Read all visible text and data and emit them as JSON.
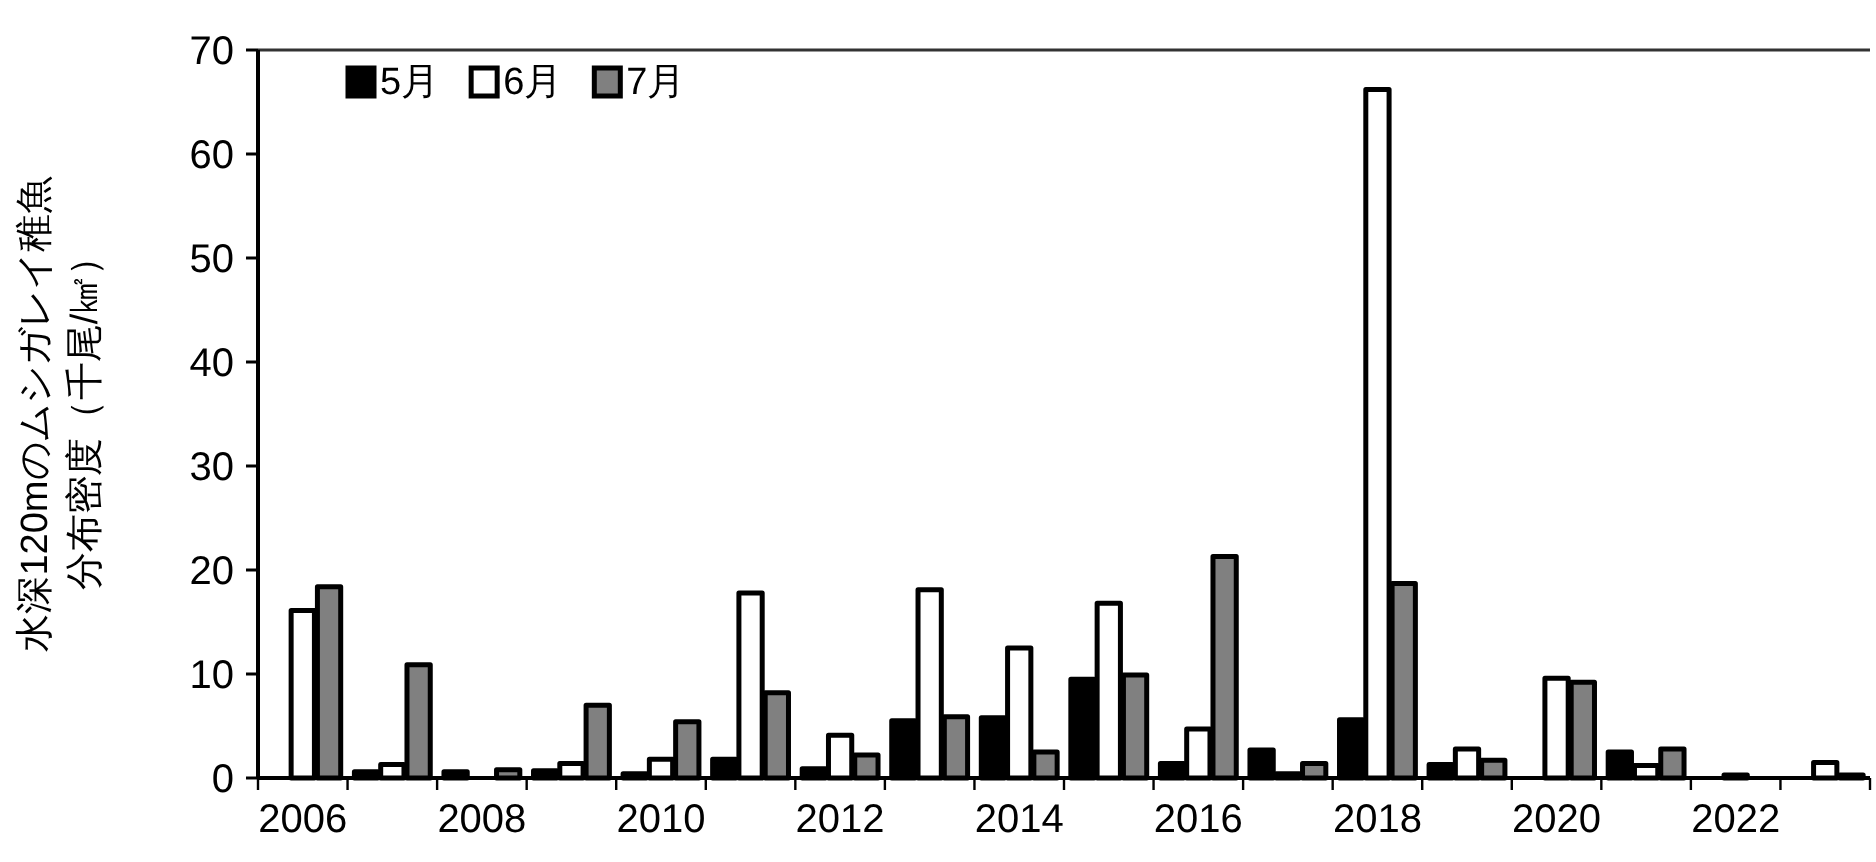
{
  "chart_data": {
    "type": "bar",
    "ylabel": [
      "水深120mのムシガレイ稚魚",
      "分布密度（千尾/㎢）"
    ],
    "categories": [
      "2006",
      null,
      "2008",
      null,
      "2010",
      null,
      "2012",
      null,
      "2014",
      null,
      "2016",
      null,
      "2018",
      null,
      "2020",
      null,
      "2022",
      null
    ],
    "series": [
      {
        "name": "5月",
        "color": "#000000",
        "values": [
          null,
          0.6,
          0.6,
          0.7,
          0.4,
          1.8,
          0.9,
          5.5,
          5.8,
          9.5,
          1.4,
          2.7,
          5.6,
          1.3,
          null,
          2.5,
          null,
          null
        ]
      },
      {
        "name": "6月",
        "color": "#ffffff",
        "values": [
          16.1,
          1.3,
          null,
          1.4,
          1.8,
          17.8,
          4.1,
          18.1,
          12.5,
          16.8,
          4.7,
          0.4,
          66.2,
          2.8,
          9.6,
          1.2,
          0.3,
          1.5
        ]
      },
      {
        "name": "7月",
        "color": "#808080",
        "values": [
          18.4,
          10.9,
          0.8,
          7.0,
          5.4,
          8.2,
          2.2,
          5.9,
          2.5,
          9.9,
          21.3,
          1.4,
          18.7,
          1.7,
          9.2,
          2.8,
          null,
          0.3
        ]
      }
    ],
    "ylim": [
      0,
      70
    ],
    "yticks": [
      0,
      10,
      20,
      30,
      40,
      50,
      60,
      70
    ],
    "grid": false,
    "legend": "top left"
  }
}
